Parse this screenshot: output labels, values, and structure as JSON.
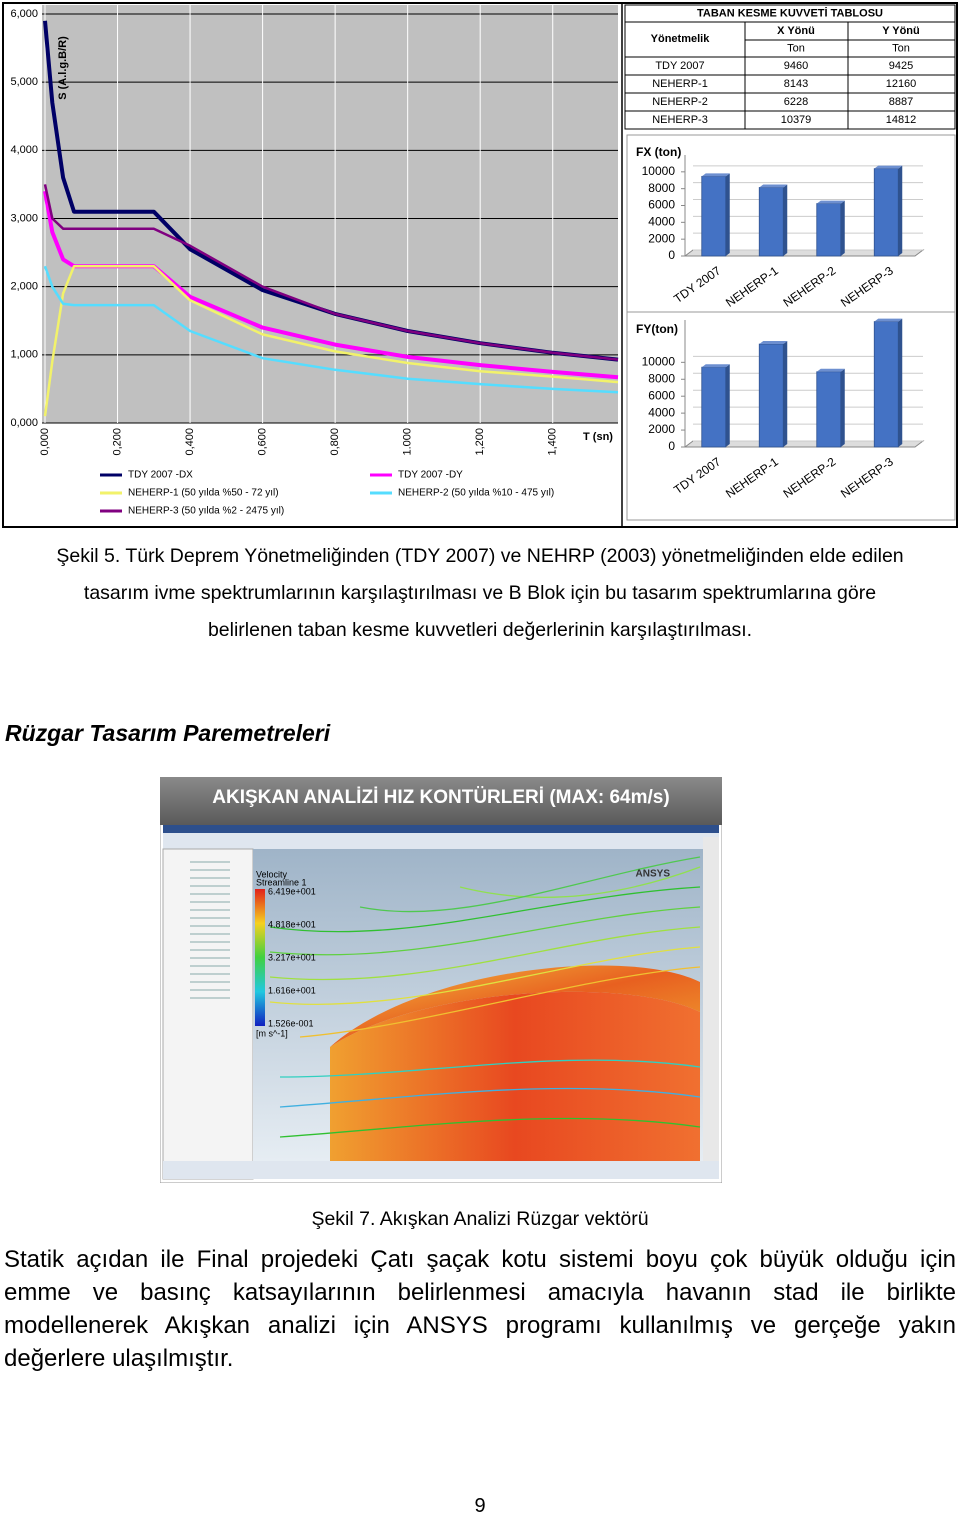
{
  "chart_data": [
    {
      "type": "line",
      "xlabel": "T (sn)",
      "ylabel": "S (A.l.g.B/R)",
      "x": [
        0,
        0.02,
        0.05,
        0.08,
        0.1,
        0.3,
        0.4,
        0.6,
        0.8,
        1.0,
        1.2,
        1.4,
        1.58
      ],
      "series": [
        {
          "name": "TDY 2007 -DX",
          "color": "#000066",
          "values": [
            5.9,
            4.7,
            3.6,
            3.1,
            3.1,
            3.1,
            2.55,
            1.95,
            1.6,
            1.35,
            1.17,
            1.03,
            0.93
          ]
        },
        {
          "name": "TDY 2007 -DY",
          "color": "#ff00ff",
          "values": [
            3.4,
            2.8,
            2.4,
            2.3,
            2.3,
            2.3,
            1.85,
            1.4,
            1.15,
            0.97,
            0.85,
            0.75,
            0.67
          ]
        },
        {
          "name": "NEHERP-1 (50 yılda %50 - 72 yıl)",
          "color": "#f2f26a",
          "values": [
            0.1,
            0.9,
            1.9,
            2.3,
            2.3,
            2.3,
            1.8,
            1.3,
            1.05,
            0.88,
            0.76,
            0.68,
            0.6
          ]
        },
        {
          "name": "NEHERP-2 (50 yılda %10 - 475 yıl)",
          "color": "#55ddff",
          "values": [
            2.3,
            2.0,
            1.75,
            1.73,
            1.73,
            1.73,
            1.35,
            0.95,
            0.78,
            0.65,
            0.57,
            0.5,
            0.45
          ]
        },
        {
          "name": "NEHERP-3 (50 yılda %2 - 2475 yıl)",
          "color": "#800080",
          "values": [
            3.5,
            3.0,
            2.85,
            2.85,
            2.85,
            2.85,
            2.6,
            2.0,
            1.6,
            1.35,
            1.17,
            1.03,
            0.93
          ]
        }
      ],
      "xlim": [
        0,
        1.58
      ],
      "xticks": [
        {
          "value": 0,
          "label": "0,000"
        },
        {
          "value": 0.2,
          "label": "0,200"
        },
        {
          "value": 0.4,
          "label": "0,400"
        },
        {
          "value": 0.6,
          "label": "0,600"
        },
        {
          "value": 0.8,
          "label": "0,800"
        },
        {
          "value": 1.0,
          "label": "1.000"
        },
        {
          "value": 1.2,
          "label": "1,200"
        },
        {
          "value": 1.4,
          "label": "1,400"
        }
      ],
      "ylim": [
        0,
        6
      ],
      "yticks": [
        {
          "value": 0,
          "label": "0,000"
        },
        {
          "value": 1,
          "label": "1,000"
        },
        {
          "value": 2,
          "label": "2,000"
        },
        {
          "value": 3,
          "label": "3,000"
        },
        {
          "value": 4,
          "label": "4,000"
        },
        {
          "value": 5,
          "label": "5,000"
        },
        {
          "value": 6,
          "label": "6,000"
        }
      ],
      "grid": true,
      "legend": "bottom"
    },
    {
      "type": "bar",
      "title": "FX (ton)",
      "categories": [
        "TDY 2007",
        "NEHERP-1",
        "NEHERP-2",
        "NEHERP-3"
      ],
      "values": [
        9460,
        8143,
        6228,
        10379
      ],
      "color": "#4472c4",
      "ylim": [
        0,
        12000
      ],
      "yticks": [
        0,
        2000,
        4000,
        6000,
        8000,
        10000
      ]
    },
    {
      "type": "bar",
      "title": "FY(ton)",
      "categories": [
        "TDY 2007",
        "NEHERP-1",
        "NEHERP-2",
        "NEHERP-3"
      ],
      "values": [
        9425,
        12160,
        8887,
        14812
      ],
      "color": "#4472c4",
      "ylim": [
        0,
        15000
      ],
      "yticks": [
        0,
        2000,
        4000,
        6000,
        8000,
        10000
      ]
    }
  ],
  "table": {
    "title": "TABAN KESME KUVVETİ TABLOSU",
    "header": [
      "Yönetmelik",
      "X Yönü",
      "Y Yönü"
    ],
    "units": [
      "Ton",
      "Ton"
    ],
    "rows": [
      [
        "TDY 2007",
        "9460",
        "9425"
      ],
      [
        "NEHERP-1",
        "8143",
        "12160"
      ],
      [
        "NEHERP-2",
        "6228",
        "8887"
      ],
      [
        "NEHERP-3",
        "10379",
        "14812"
      ]
    ]
  },
  "caption5": "Şekil 5. Türk Deprem Yönetmeliğinden (TDY 2007) ve NEHRP (2003) yönetmeliğinden elde edilen tasarım ivme spektrumlarının karşılaştırılması  ve B Blok için bu tasarım spektrumlarına göre belirlenen taban kesme kuvvetleri değerlerinin karşılaştırılması.",
  "heading": "Rüzgar Tasarım Paremetreleri",
  "figure7": {
    "title": "AKIŞKAN ANALİZİ HIZ KONTÜRLERİ (MAX: 64m/s)",
    "legend_title": "Velocity",
    "legend_subtitle": "Streamline 1",
    "legend_labels": [
      "6.419e+001",
      "4.818e+001",
      "3.217e+001",
      "1.616e+001",
      "1.526e-001"
    ],
    "unit": "[m s^-1]",
    "brand": "ANSYS"
  },
  "caption7": "Şekil 7. Akışkan Analizi Rüzgar vektörü",
  "paragraph": "Statik açıdan ile Final projedeki Çatı şaçak kotu sistemi boyu çok büyük olduğu için emme ve basınç katsayılarının belirlenmesi amacıyla havanın stad ile birlikte modellenerek Akışkan analizi için ANSYS programı kullanılmış ve gerçeğe yakın değerlere ulaşılmıştır.",
  "page_number": "9"
}
